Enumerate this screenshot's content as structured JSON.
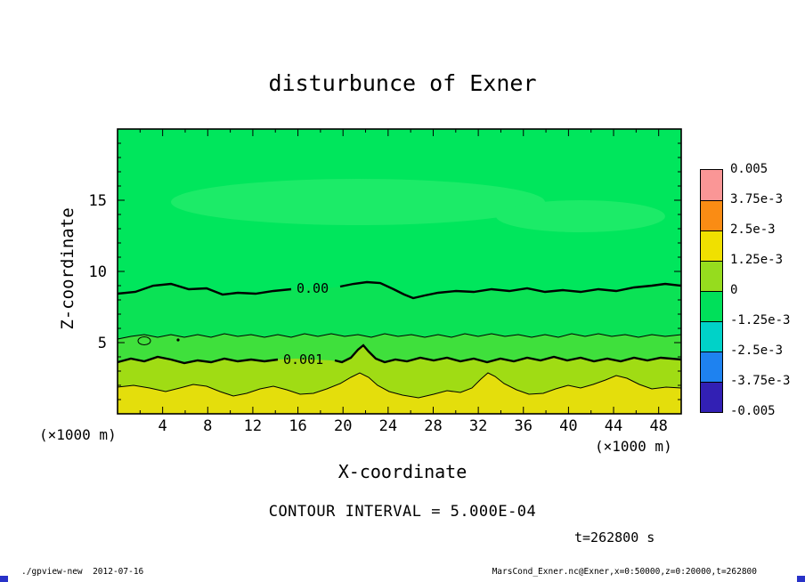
{
  "window": {
    "background": "#ffffff"
  },
  "chart_data": {
    "type": "heatmap",
    "subtype": "filled-contour",
    "title": "disturbunce of Exner",
    "xlabel": "X-coordinate",
    "ylabel": "Z-coordinate",
    "unit_label": "(×1000 m)",
    "xlim": [
      0,
      50
    ],
    "ylim": [
      0,
      20
    ],
    "x_ticks": [
      4,
      8,
      12,
      16,
      20,
      24,
      28,
      32,
      36,
      40,
      44,
      48
    ],
    "y_ticks": [
      5,
      10,
      15
    ],
    "grid": false,
    "contour_interval_label": "CONTOUR INTERVAL = 5.000E-04",
    "time_label": "t=262800 s",
    "contours": [
      {
        "label": "0.00",
        "value": 0.0,
        "approx_z_x1000m": 8.6
      },
      {
        "label": "",
        "value": 0.0005,
        "approx_z_x1000m": 5.5
      },
      {
        "label": "0.001",
        "value": 0.001,
        "approx_z_x1000m": 3.9
      },
      {
        "label": "",
        "value": 0.0015,
        "approx_z_x1000m": 1.8
      }
    ],
    "fills": [
      {
        "label": "background field above 0.00 contour",
        "color": "#00e65c"
      },
      {
        "label": "lighter patch near z=14-16",
        "color": "#1ceb68"
      },
      {
        "label": "band 0 to 5e-4",
        "color": "#0be255"
      },
      {
        "label": "band 5e-4 to 1e-3",
        "color": "#3fe03c"
      },
      {
        "label": "band 1e-3 to 1.5e-3",
        "color": "#a0dc14"
      },
      {
        "label": "bottom band above 1.5e-3",
        "color": "#e4de0c"
      }
    ],
    "colorbar": {
      "position": "right",
      "labels": [
        "0.005",
        "3.75e-3",
        "2.5e-3",
        "1.25e-3",
        "0",
        "-1.25e-3",
        "-2.5e-3",
        "-3.75e-3",
        "-0.005"
      ],
      "colors": [
        "#fa9696",
        "#fa8c14",
        "#f0e000",
        "#96dc1e",
        "#00e05a",
        "#00d2c8",
        "#1e82f0",
        "#3220b4"
      ]
    }
  },
  "footer": {
    "left": "./gpview-new  2012-07-16",
    "right": "MarsCond_Exner.nc@Exner,x=0:50000,z=0:20000,t=262800"
  },
  "decorations": {
    "corner_mark_color": "#2832c8"
  }
}
